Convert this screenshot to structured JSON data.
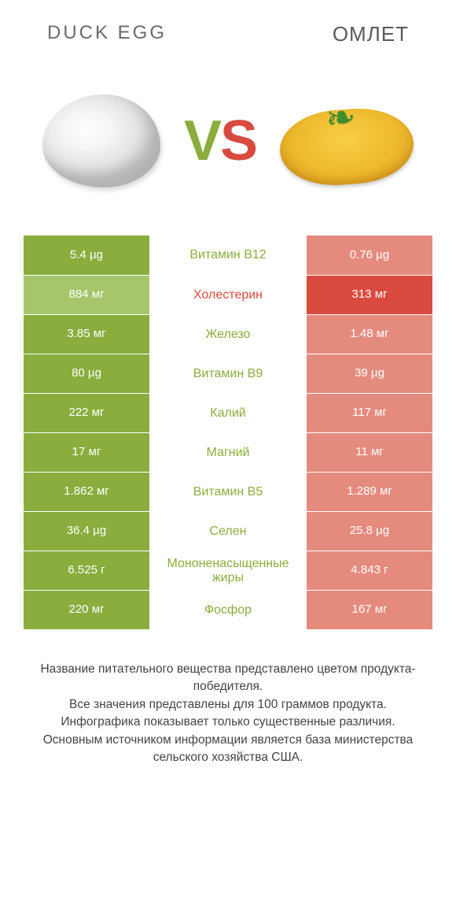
{
  "colors": {
    "left_strong": "#8aad3e",
    "left_soft": "#a7c56a",
    "right_strong": "#d94b3f",
    "right_soft": "#e58b7e",
    "mid_left": "#8aad3e",
    "mid_right": "#d94b3f",
    "background": "#ffffff",
    "text_mid_default": "#777777"
  },
  "header": {
    "left": "DUCK EGG",
    "right": "Омлет"
  },
  "vs": {
    "v": "V",
    "s": "S"
  },
  "rows": [
    {
      "left": "5.4 µg",
      "mid": "Витамин B12",
      "right": "0.76 µg",
      "winner": "left"
    },
    {
      "left": "884 мг",
      "mid": "Холестерин",
      "right": "313 мг",
      "winner": "right"
    },
    {
      "left": "3.85 мг",
      "mid": "Железо",
      "right": "1.48 мг",
      "winner": "left"
    },
    {
      "left": "80 µg",
      "mid": "Витамин B9",
      "right": "39 µg",
      "winner": "left"
    },
    {
      "left": "222 мг",
      "mid": "Калий",
      "right": "117 мг",
      "winner": "left"
    },
    {
      "left": "17 мг",
      "mid": "Магний",
      "right": "11 мг",
      "winner": "left"
    },
    {
      "left": "1.862 мг",
      "mid": "Витамин B5",
      "right": "1.289 мг",
      "winner": "left"
    },
    {
      "left": "36.4 µg",
      "mid": "Селен",
      "right": "25.8 µg",
      "winner": "left"
    },
    {
      "left": "6.525 г",
      "mid": "Мононенасыщенные жиры",
      "right": "4.843 г",
      "winner": "left"
    },
    {
      "left": "220 мг",
      "mid": "Фосфор",
      "right": "167 мг",
      "winner": "left"
    }
  ],
  "footer": {
    "line1": "Название питательного вещества представлено цветом продукта-победителя.",
    "line2": "Все значения представлены для 100 граммов продукта.",
    "line3": "Инфографика показывает только существенные различия.",
    "line4": "Основным источником информации является база министерства сельского хозяйства США."
  }
}
